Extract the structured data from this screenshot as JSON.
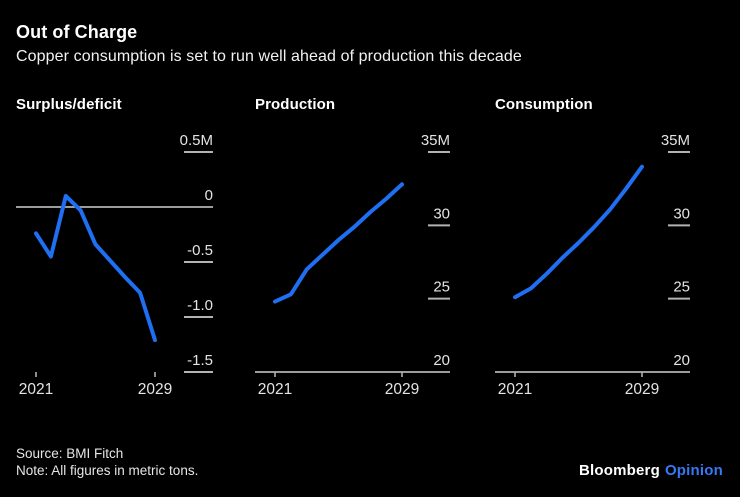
{
  "header": {
    "title": "Out of Charge",
    "subtitle": "Copper consumption is set to run well ahead of production this decade"
  },
  "footer": {
    "source": "Source: BMI Fitch",
    "note": "Note: All figures in metric tons.",
    "brand": "Bloomberg",
    "brand_suffix": "Opinion"
  },
  "colors": {
    "background": "#000000",
    "line": "#1f6ff2",
    "brand_blue": "#3579f6",
    "label": "#e4e4e4",
    "tick": "#b3b3b3",
    "axis_line": "#cfcfcf",
    "text": "#ffffff"
  },
  "chart_data": [
    {
      "type": "line",
      "title": "Surplus/deficit",
      "unit": "metric tons (millions)",
      "x": [
        2021,
        2022,
        2023,
        2024,
        2025,
        2026,
        2027,
        2028,
        2029
      ],
      "values": [
        -0.24,
        -0.45,
        0.1,
        -0.03,
        -0.34,
        -0.49,
        -0.64,
        -0.78,
        -1.21
      ],
      "ylim": [
        -1.5,
        0.5
      ],
      "baseline": false,
      "grid": false,
      "yticks": [
        {
          "value": 0.5,
          "label": "0.5M",
          "line": "dash"
        },
        {
          "value": 0,
          "label": "0",
          "line": "full"
        },
        {
          "value": -0.5,
          "label": "-0.5",
          "line": "dash"
        },
        {
          "value": -1,
          "label": "-1.0",
          "line": "dash"
        },
        {
          "value": -1.5,
          "label": "-1.5",
          "line": "dash"
        }
      ],
      "xticks": [
        {
          "value": 2021,
          "label": "2021"
        },
        {
          "value": 2029,
          "label": "2029"
        }
      ]
    },
    {
      "type": "line",
      "title": "Production",
      "unit": "metric tons (millions)",
      "x": [
        2021,
        2022,
        2023,
        2024,
        2025,
        2026,
        2027,
        2028,
        2029
      ],
      "values": [
        24.8,
        25.3,
        27.0,
        28.0,
        29.0,
        29.9,
        30.9,
        31.8,
        32.8
      ],
      "ylim": [
        20,
        35
      ],
      "baseline": true,
      "grid": false,
      "yticks": [
        {
          "value": 35,
          "label": "35M",
          "line": "dash"
        },
        {
          "value": 30,
          "label": "30",
          "line": "dash"
        },
        {
          "value": 25,
          "label": "25",
          "line": "dash"
        },
        {
          "value": 20,
          "label": "20",
          "line": "none"
        }
      ],
      "xticks": [
        {
          "value": 2021,
          "label": "2021"
        },
        {
          "value": 2029,
          "label": "2029"
        }
      ]
    },
    {
      "type": "line",
      "title": "Consumption",
      "unit": "metric tons (millions)",
      "x": [
        2021,
        2022,
        2023,
        2024,
        2025,
        2026,
        2027,
        2028,
        2029
      ],
      "values": [
        25.1,
        25.7,
        26.7,
        27.8,
        28.8,
        29.9,
        31.1,
        32.5,
        34.0
      ],
      "ylim": [
        20,
        35
      ],
      "baseline": true,
      "grid": false,
      "yticks": [
        {
          "value": 35,
          "label": "35M",
          "line": "dash"
        },
        {
          "value": 30,
          "label": "30",
          "line": "dash"
        },
        {
          "value": 25,
          "label": "25",
          "line": "dash"
        },
        {
          "value": 20,
          "label": "20",
          "line": "none"
        }
      ],
      "xticks": [
        {
          "value": 2021,
          "label": "2021"
        },
        {
          "value": 2029,
          "label": "2029"
        }
      ]
    }
  ]
}
